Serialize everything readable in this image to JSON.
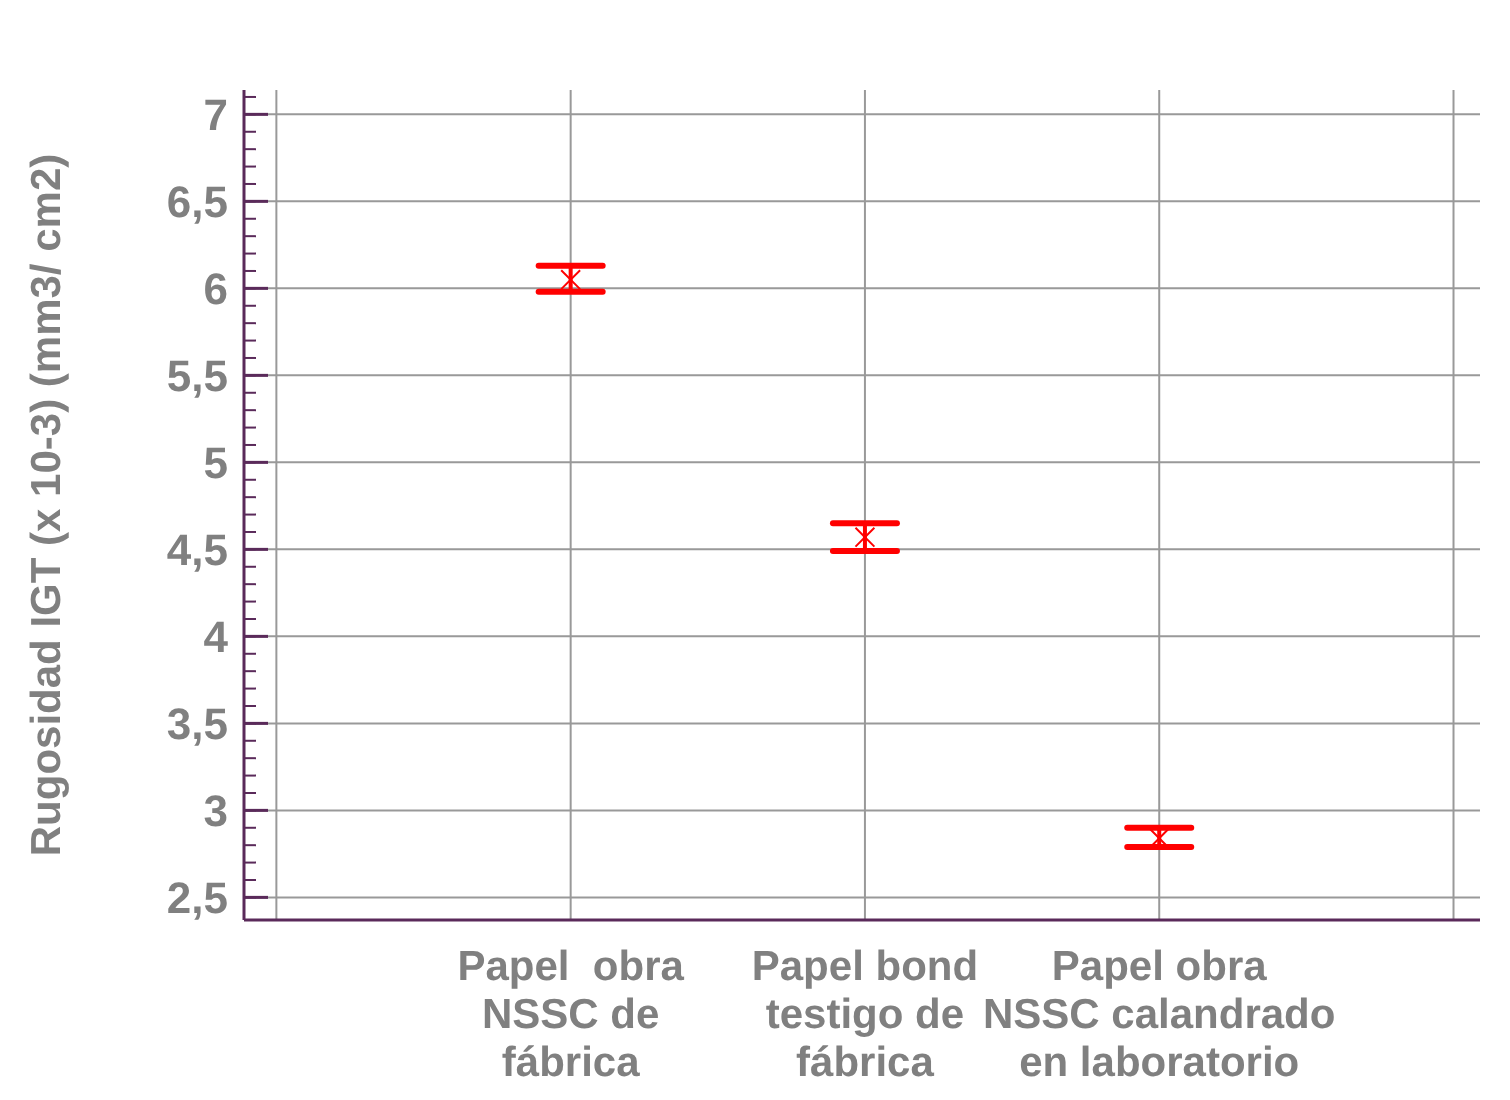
{
  "chart_data": {
    "type": "scatter",
    "ylabel": "Rugosidad IGT (x 10-3) (mm3/ cm2)",
    "categories": [
      "Papel  obra\nNSSC de\nfábrica",
      "Papel bond\ntestigo de\nfábrica",
      "Papel obra\nNSSC calandrado\nen laboratorio"
    ],
    "series": [
      {
        "color": "#ff0000",
        "values": [
          6.05,
          4.57,
          2.84
        ],
        "errors": [
          [
            5.98,
            6.13
          ],
          [
            4.49,
            4.65
          ],
          [
            2.79,
            2.9
          ]
        ]
      }
    ],
    "marker": "cross",
    "grid": true,
    "ylim": [
      2.37,
      7.14
    ],
    "yticks": [
      {
        "value": 2.5,
        "label": "2,5"
      },
      3,
      {
        "value": 3.5,
        "label": "3,5"
      },
      4,
      {
        "value": 4.5,
        "label": "4,5"
      },
      5,
      {
        "value": 5.5,
        "label": "5,5"
      },
      6,
      {
        "value": 6.5,
        "label": "6,5"
      },
      7
    ]
  }
}
